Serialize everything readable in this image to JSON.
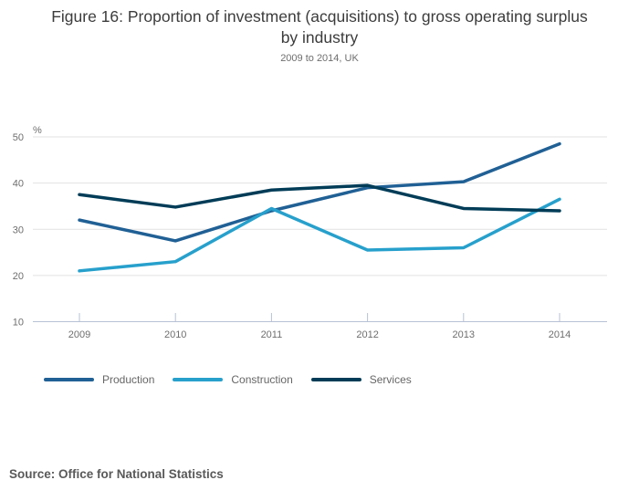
{
  "chart_data": {
    "type": "line",
    "title": "Figure 16: Proportion of investment (acquisitions) to gross operating surplus by industry",
    "subtitle": "2009 to 2014, UK",
    "source": "Source: Office for National Statistics",
    "unit_label": "%",
    "x": [
      2009,
      2010,
      2011,
      2012,
      2013,
      2014
    ],
    "series": [
      {
        "name": "Production",
        "color": "#206095",
        "values": [
          32.0,
          27.5,
          34.0,
          39.0,
          40.3,
          48.5
        ]
      },
      {
        "name": "Construction",
        "color": "#27a0cc",
        "values": [
          21.0,
          23.0,
          34.5,
          25.5,
          26.0,
          36.5
        ]
      },
      {
        "name": "Services",
        "color": "#003c57",
        "values": [
          37.5,
          34.8,
          38.5,
          39.5,
          34.5,
          34.0
        ]
      }
    ],
    "yticks": [
      50,
      40,
      30,
      20,
      10
    ],
    "ylim": [
      10,
      50
    ],
    "grid": true,
    "legend_position": "bottom-left",
    "colors": {
      "grid": "#e2e2e2",
      "axis": "#b6c1d4",
      "tick_text": "#6e6e6e"
    }
  }
}
